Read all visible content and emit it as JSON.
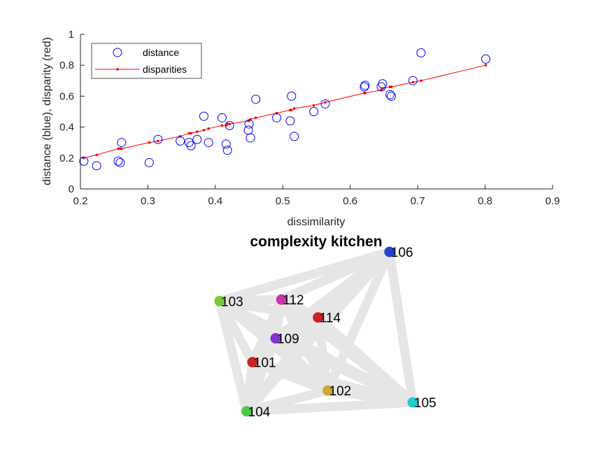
{
  "chart_data": [
    {
      "type": "scatter",
      "title": "",
      "xlabel": "dissimilarity",
      "ylabel": "distance (blue), disparity (red)",
      "xlim": [
        0.2,
        0.9
      ],
      "ylim": [
        0,
        1
      ],
      "xticks": [
        "0.2",
        "0.3",
        "0.4",
        "0.5",
        "0.6",
        "0.7",
        "0.8",
        "0.9"
      ],
      "yticks": [
        "0",
        "0.2",
        "0.4",
        "0.6",
        "0.8",
        "1"
      ],
      "grid": false,
      "legend_position": "top-left",
      "series": [
        {
          "name": "distance",
          "marker": "open-circle",
          "color": "#0000ff",
          "points": [
            [
              0.205,
              0.18
            ],
            [
              0.224,
              0.15
            ],
            [
              0.256,
              0.18
            ],
            [
              0.259,
              0.17
            ],
            [
              0.261,
              0.3
            ],
            [
              0.302,
              0.17
            ],
            [
              0.315,
              0.32
            ],
            [
              0.348,
              0.31
            ],
            [
              0.361,
              0.3
            ],
            [
              0.364,
              0.28
            ],
            [
              0.373,
              0.32
            ],
            [
              0.383,
              0.47
            ],
            [
              0.39,
              0.3
            ],
            [
              0.41,
              0.46
            ],
            [
              0.416,
              0.29
            ],
            [
              0.418,
              0.25
            ],
            [
              0.421,
              0.41
            ],
            [
              0.449,
              0.38
            ],
            [
              0.45,
              0.42
            ],
            [
              0.452,
              0.33
            ],
            [
              0.46,
              0.58
            ],
            [
              0.491,
              0.46
            ],
            [
              0.511,
              0.44
            ],
            [
              0.513,
              0.6
            ],
            [
              0.517,
              0.34
            ],
            [
              0.546,
              0.5
            ],
            [
              0.563,
              0.55
            ],
            [
              0.621,
              0.66
            ],
            [
              0.622,
              0.67
            ],
            [
              0.646,
              0.66
            ],
            [
              0.648,
              0.68
            ],
            [
              0.659,
              0.61
            ],
            [
              0.661,
              0.6
            ],
            [
              0.693,
              0.7
            ],
            [
              0.705,
              0.88
            ],
            [
              0.801,
              0.84
            ]
          ]
        },
        {
          "name": "disparities",
          "marker": "line-dot",
          "color": "#ff0000",
          "points": [
            [
              0.205,
              0.2
            ],
            [
              0.224,
              0.22
            ],
            [
              0.256,
              0.26
            ],
            [
              0.259,
              0.26
            ],
            [
              0.261,
              0.26
            ],
            [
              0.302,
              0.3
            ],
            [
              0.315,
              0.31
            ],
            [
              0.348,
              0.34
            ],
            [
              0.361,
              0.36
            ],
            [
              0.364,
              0.36
            ],
            [
              0.373,
              0.37
            ],
            [
              0.383,
              0.38
            ],
            [
              0.39,
              0.39
            ],
            [
              0.41,
              0.41
            ],
            [
              0.416,
              0.41
            ],
            [
              0.418,
              0.42
            ],
            [
              0.421,
              0.42
            ],
            [
              0.449,
              0.44
            ],
            [
              0.45,
              0.44
            ],
            [
              0.452,
              0.45
            ],
            [
              0.46,
              0.46
            ],
            [
              0.491,
              0.49
            ],
            [
              0.511,
              0.51
            ],
            [
              0.513,
              0.51
            ],
            [
              0.517,
              0.52
            ],
            [
              0.546,
              0.54
            ],
            [
              0.563,
              0.56
            ],
            [
              0.621,
              0.62
            ],
            [
              0.622,
              0.62
            ],
            [
              0.646,
              0.64
            ],
            [
              0.648,
              0.65
            ],
            [
              0.659,
              0.66
            ],
            [
              0.661,
              0.66
            ],
            [
              0.693,
              0.69
            ],
            [
              0.705,
              0.7
            ],
            [
              0.801,
              0.8
            ]
          ]
        }
      ]
    },
    {
      "type": "network",
      "title": "complexity kitchen",
      "edge_color": "#e6e6e6",
      "nodes": [
        {
          "id": "106",
          "color": "#2244cc",
          "x": 0.88,
          "y": 1.0
        },
        {
          "id": "103",
          "color": "#77cc33",
          "x": 0.0,
          "y": 0.67
        },
        {
          "id": "112",
          "color": "#cc33aa",
          "x": 0.32,
          "y": 0.68
        },
        {
          "id": "114",
          "color": "#cc2222",
          "x": 0.51,
          "y": 0.56
        },
        {
          "id": "109",
          "color": "#8833cc",
          "x": 0.29,
          "y": 0.42
        },
        {
          "id": "101",
          "color": "#cc2222",
          "x": 0.17,
          "y": 0.26
        },
        {
          "id": "102",
          "color": "#ccaa33",
          "x": 0.56,
          "y": 0.07
        },
        {
          "id": "105",
          "color": "#22cccc",
          "x": 1.0,
          "y": -0.01
        },
        {
          "id": "104",
          "color": "#44cc44",
          "x": 0.14,
          "y": -0.07
        }
      ]
    }
  ]
}
